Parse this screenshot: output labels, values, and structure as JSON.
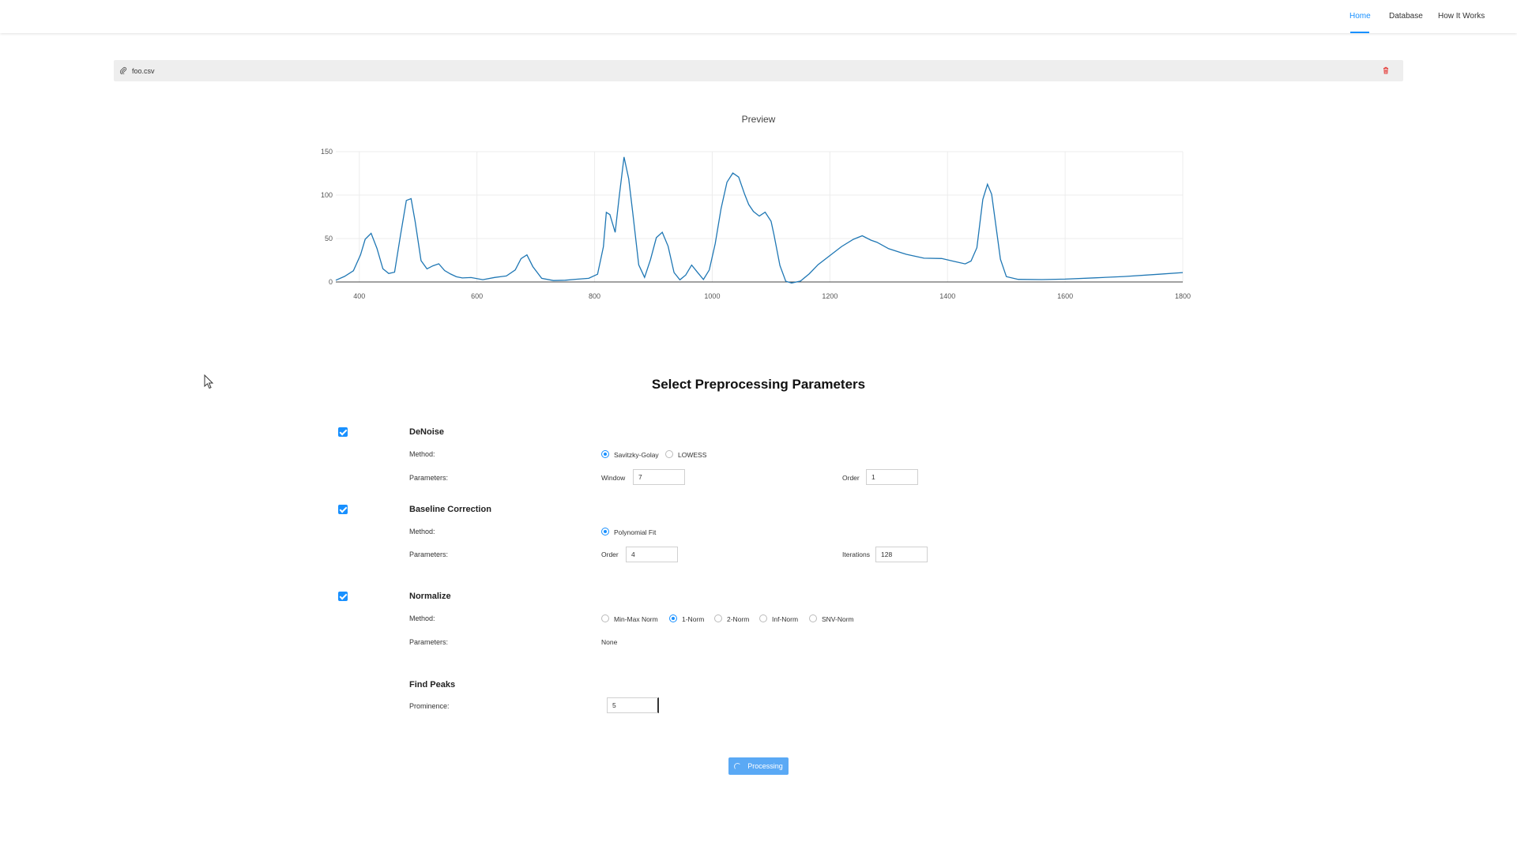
{
  "nav": {
    "items": [
      "Home",
      "Database",
      "How It Works"
    ],
    "active": "Home"
  },
  "file": {
    "name": "foo.csv"
  },
  "preview": {
    "title": "Preview"
  },
  "chart_data": {
    "type": "line",
    "title": "Preview",
    "xlabel": "",
    "ylabel": "",
    "xlim": [
      360,
      1800
    ],
    "ylim": [
      0,
      150
    ],
    "x_ticks": [
      400,
      600,
      800,
      1000,
      1200,
      1400,
      1600,
      1800
    ],
    "y_ticks": [
      0,
      50,
      100,
      150
    ],
    "grid": true,
    "series": [
      {
        "color": "#1f77b4",
        "x": [
          360,
          375,
          390,
          402,
          410,
          420,
          430,
          440,
          450,
          460,
          470,
          480,
          488,
          495,
          505,
          515,
          525,
          535,
          545,
          555,
          565,
          575,
          590,
          610,
          630,
          650,
          665,
          675,
          685,
          695,
          710,
          730,
          750,
          770,
          790,
          805,
          815,
          820,
          826,
          835,
          842,
          850,
          858,
          865,
          875,
          885,
          895,
          905,
          915,
          925,
          935,
          945,
          955,
          965,
          975,
          985,
          995,
          1005,
          1015,
          1025,
          1035,
          1045,
          1055,
          1062,
          1070,
          1080,
          1090,
          1100,
          1105,
          1115,
          1125,
          1135,
          1150,
          1165,
          1180,
          1200,
          1220,
          1240,
          1255,
          1270,
          1280,
          1300,
          1330,
          1360,
          1390,
          1410,
          1430,
          1440,
          1450,
          1460,
          1468,
          1475,
          1490,
          1500,
          1520,
          1560,
          1600,
          1650,
          1700,
          1760,
          1800
        ],
        "y": [
          2,
          6,
          12,
          30,
          48,
          55,
          38,
          15,
          10,
          12,
          55,
          95,
          97,
          70,
          25,
          15,
          18,
          20,
          12,
          8,
          5,
          4,
          5,
          3,
          6,
          8,
          15,
          28,
          32,
          18,
          4,
          1,
          1,
          2,
          3,
          8,
          40,
          80,
          78,
          58,
          100,
          145,
          120,
          80,
          20,
          5,
          25,
          50,
          56,
          40,
          10,
          2,
          8,
          20,
          12,
          4,
          15,
          45,
          85,
          115,
          125,
          120,
          100,
          88,
          80,
          75,
          80,
          70,
          55,
          20,
          2,
          0,
          2,
          10,
          20,
          30,
          40,
          48,
          52,
          47,
          45,
          38,
          32,
          28,
          28,
          25,
          22,
          25,
          40,
          95,
          112,
          100,
          25,
          5,
          2,
          2,
          3,
          5,
          7,
          10,
          12
        ]
      }
    ]
  },
  "section": {
    "title": "Select Preprocessing Parameters"
  },
  "labels": {
    "method": "Method:",
    "parameters": "Parameters:"
  },
  "denoise": {
    "title": "DeNoise",
    "methods": [
      "Savitzky-Golay",
      "LOWESS"
    ],
    "selected": "Savitzky-Golay",
    "window_label": "Window",
    "window_value": "7",
    "order_label": "Order",
    "order_value": "1"
  },
  "baseline": {
    "title": "Baseline Correction",
    "methods": [
      "Polynomial Fit"
    ],
    "selected": "Polynomial Fit",
    "order_label": "Order",
    "order_value": "4",
    "iterations_label": "Iterations",
    "iterations_value": "128"
  },
  "normalize": {
    "title": "Normalize",
    "methods": [
      "Min-Max Norm",
      "1-Norm",
      "2-Norm",
      "Inf-Norm",
      "SNV-Norm"
    ],
    "selected": "1-Norm",
    "parameters_value": "None"
  },
  "find_peaks": {
    "title": "Find Peaks",
    "prominence_label": "Prominence:",
    "prominence_value": "5"
  },
  "process_button": {
    "label": "Processing"
  },
  "colors": {
    "accent": "#1890ff",
    "button": "#5aa9f5",
    "line": "#1f77b4",
    "delete": "#e53935"
  }
}
